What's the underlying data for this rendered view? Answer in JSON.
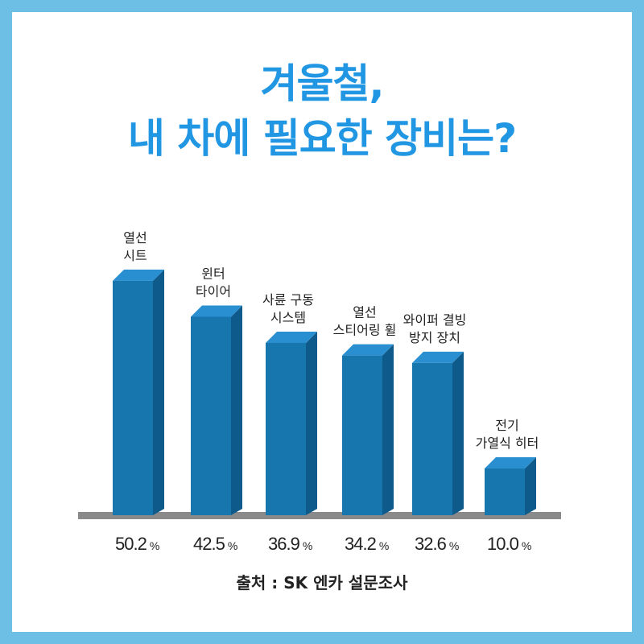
{
  "title_lines": [
    "겨울철,",
    "내 차에  필요한 장비는?"
  ],
  "source": "출처 : SK 엔카 설문조사",
  "colors": {
    "background": "#6ebfe6",
    "title": "#2196e3",
    "bar_front": "#1676ad",
    "bar_top": "#2a8fd0",
    "bar_side": "#0e5a8a",
    "baseline": "#8a8a8a"
  },
  "chart_data": {
    "type": "bar",
    "title": "겨울철, 내 차에  필요한 장비는?",
    "categories": [
      [
        "열선",
        "시트"
      ],
      [
        "윈터",
        "타이어"
      ],
      [
        "사륜 구동",
        "시스템"
      ],
      [
        "열선",
        "스티어링 휠"
      ],
      [
        "와이퍼 결빙",
        "방지 장치"
      ],
      [
        "전기",
        "가열식 히터"
      ]
    ],
    "values": [
      50.2,
      42.5,
      36.9,
      34.2,
      32.6,
      10.0
    ],
    "value_labels": [
      "50.2",
      "42.5",
      "36.9",
      "34.2",
      "32.6",
      "10.0"
    ],
    "unit": "%",
    "style": "3d-bar",
    "grid": false,
    "legend": "none"
  }
}
